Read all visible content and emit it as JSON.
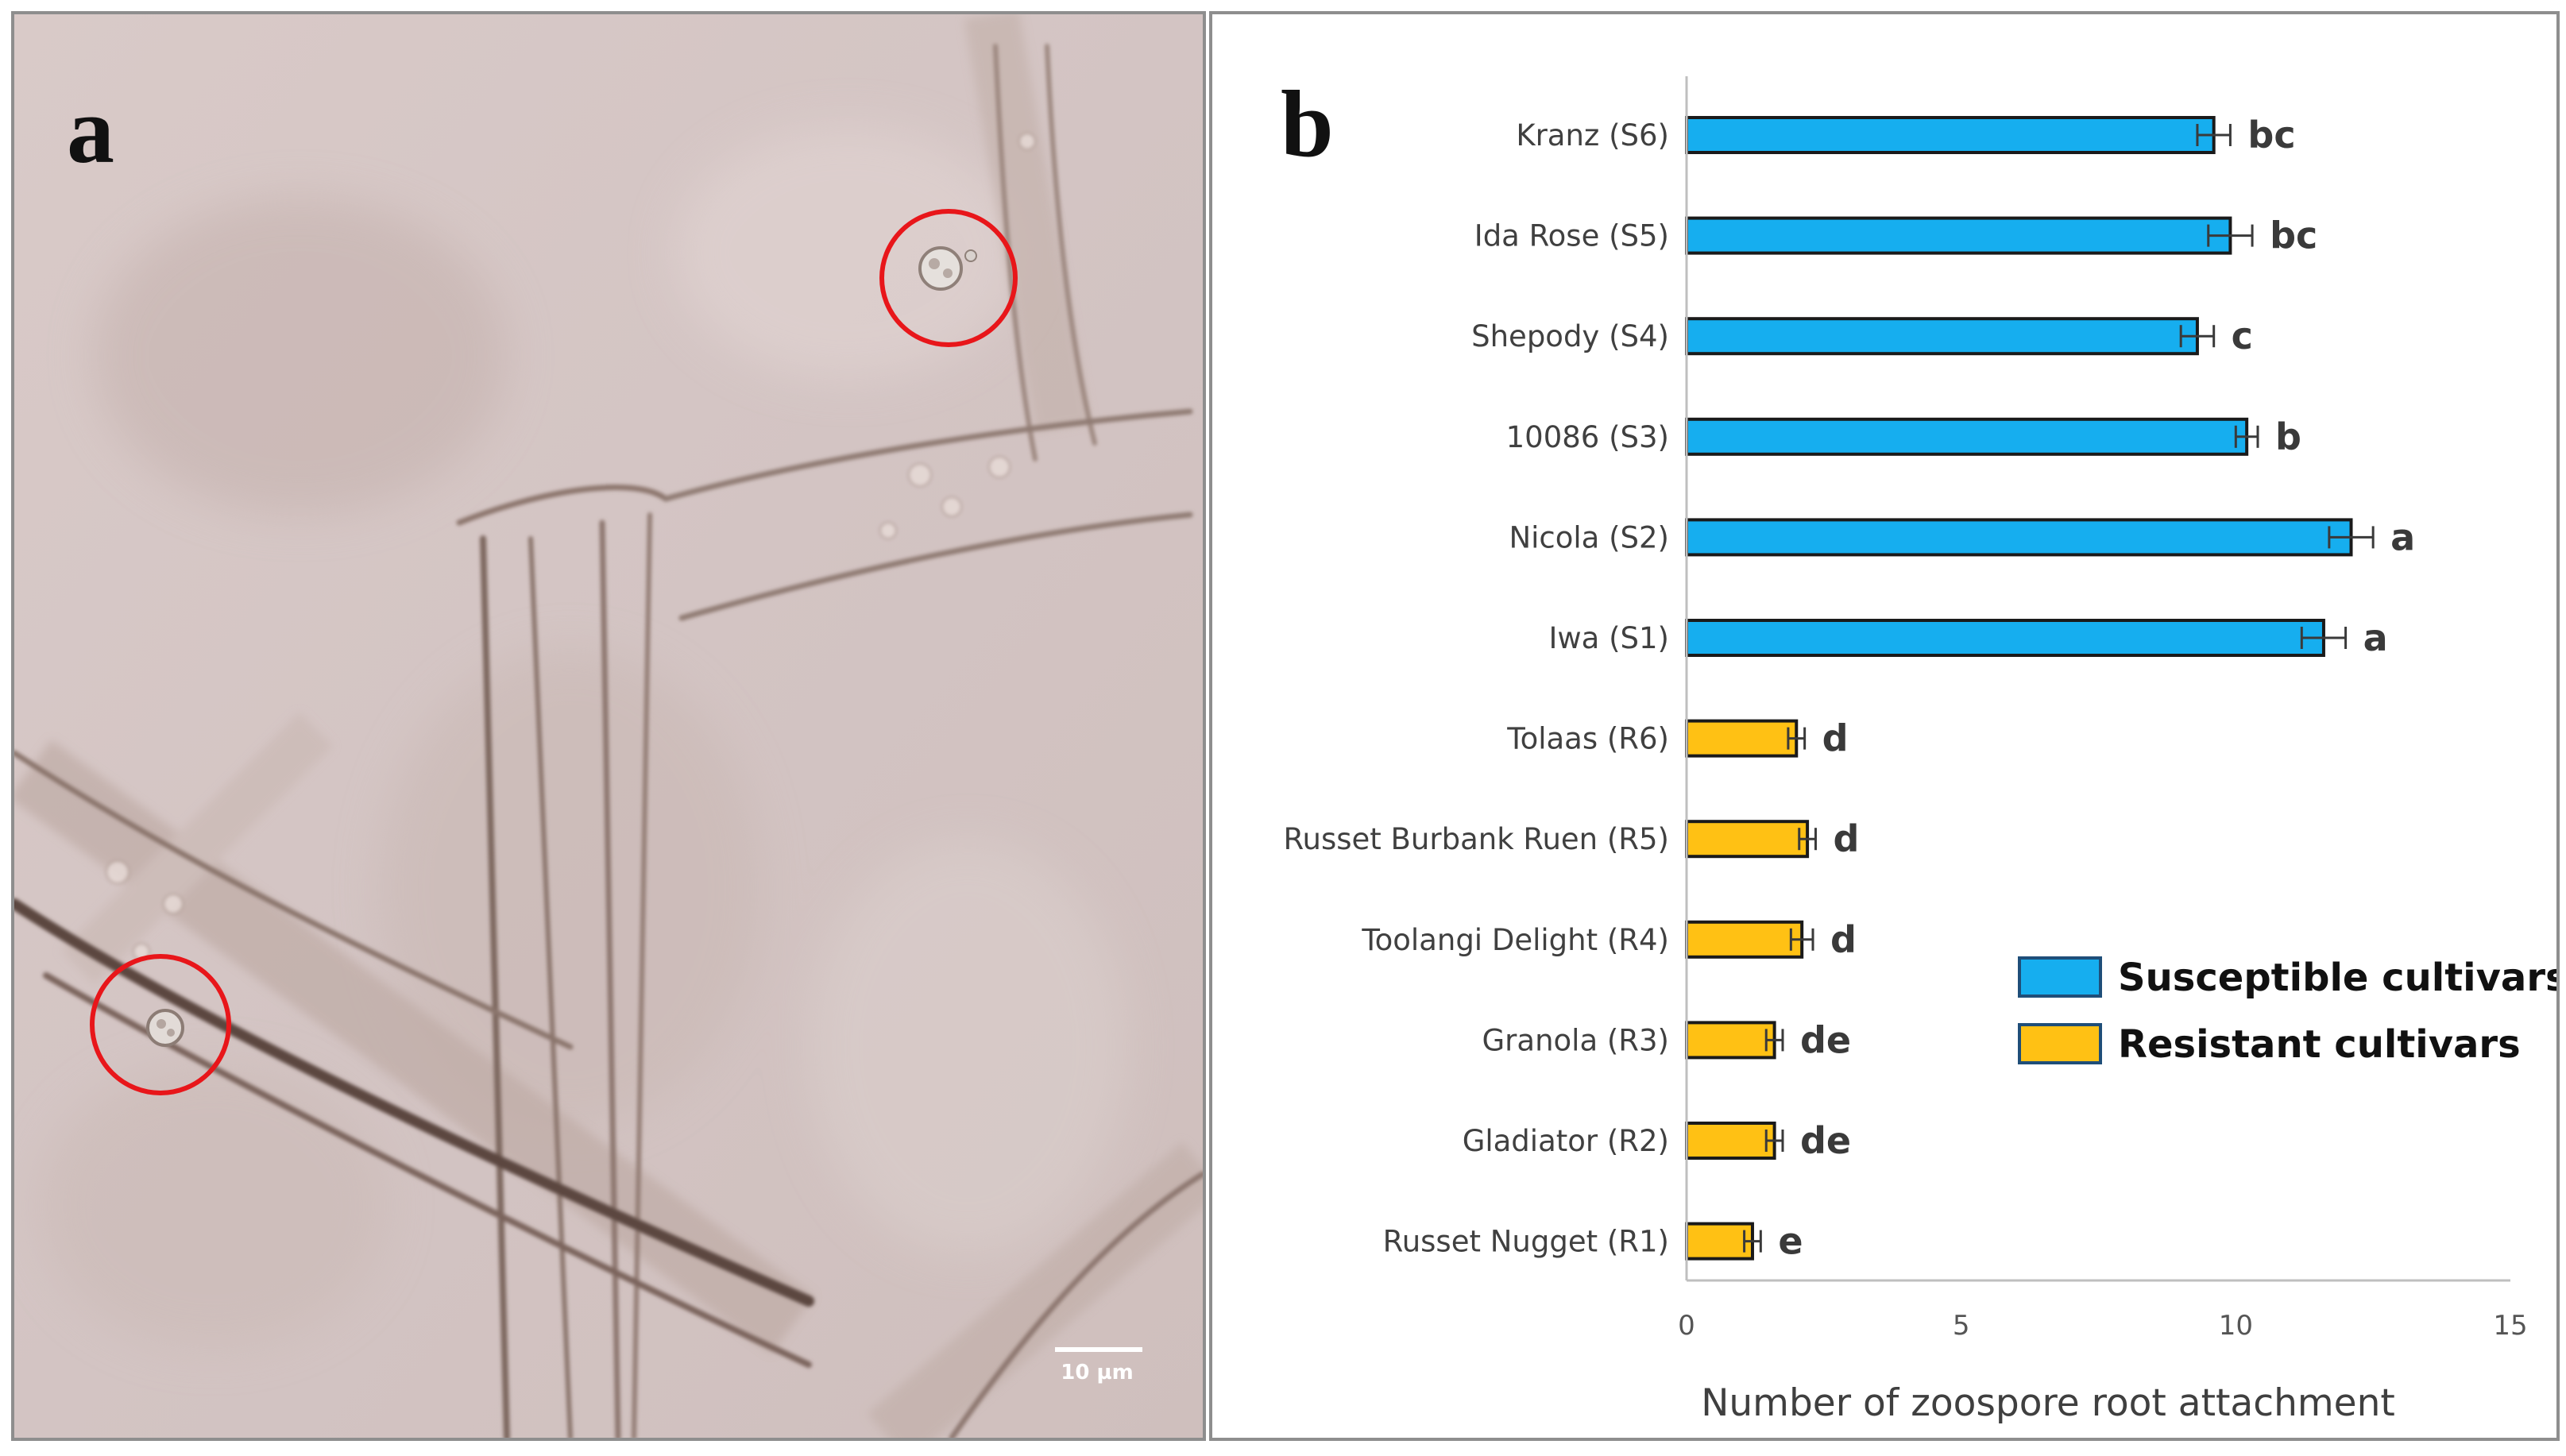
{
  "panel_a": {
    "letter": "a",
    "scale_bar_label": "10 µm",
    "colors": {
      "background": "#d7c8c6",
      "marker_circle": "#e8161a"
    },
    "icons": [
      "zoospore-marker-circle",
      "zoospore-marker-circle"
    ]
  },
  "panel_b": {
    "letter": "b"
  },
  "chart_data": {
    "type": "bar",
    "orientation": "horizontal",
    "title": "",
    "xlabel": "Number of zoospore root attachment",
    "ylabel": "",
    "xlim": [
      0,
      15
    ],
    "x_ticks": [
      "0",
      "5",
      "10",
      "15"
    ],
    "grid": false,
    "legend_position": "right",
    "categories": [
      "Kranz (S6)",
      "Ida Rose (S5)",
      "Shepody (S4)",
      "10086 (S3)",
      "Nicola (S2)",
      "Iwa (S1)",
      "Tolaas (R6)",
      "Russet Burbank Ruen (R5)",
      "Toolangi Delight (R4)",
      "Granola (R3)",
      "Gladiator (R2)",
      "Russet Nugget (R1)"
    ],
    "values": [
      9.6,
      9.9,
      9.3,
      10.2,
      12.1,
      11.6,
      2.0,
      2.2,
      2.1,
      1.6,
      1.6,
      1.2
    ],
    "errors": [
      0.3,
      0.4,
      0.3,
      0.2,
      0.4,
      0.4,
      0.15,
      0.15,
      0.2,
      0.15,
      0.15,
      0.15
    ],
    "letters": [
      "bc",
      "bc",
      "c",
      "b",
      "a",
      "a",
      "d",
      "d",
      "d",
      "de",
      "de",
      "e"
    ],
    "groups": [
      "susceptible",
      "susceptible",
      "susceptible",
      "susceptible",
      "susceptible",
      "susceptible",
      "resistant",
      "resistant",
      "resistant",
      "resistant",
      "resistant",
      "resistant"
    ],
    "series": [
      {
        "name": "Susceptible cultivars",
        "key": "susceptible",
        "color": "#16aeef"
      },
      {
        "name": "Resistant cultivars",
        "key": "resistant",
        "color": "#ffc114"
      }
    ]
  }
}
